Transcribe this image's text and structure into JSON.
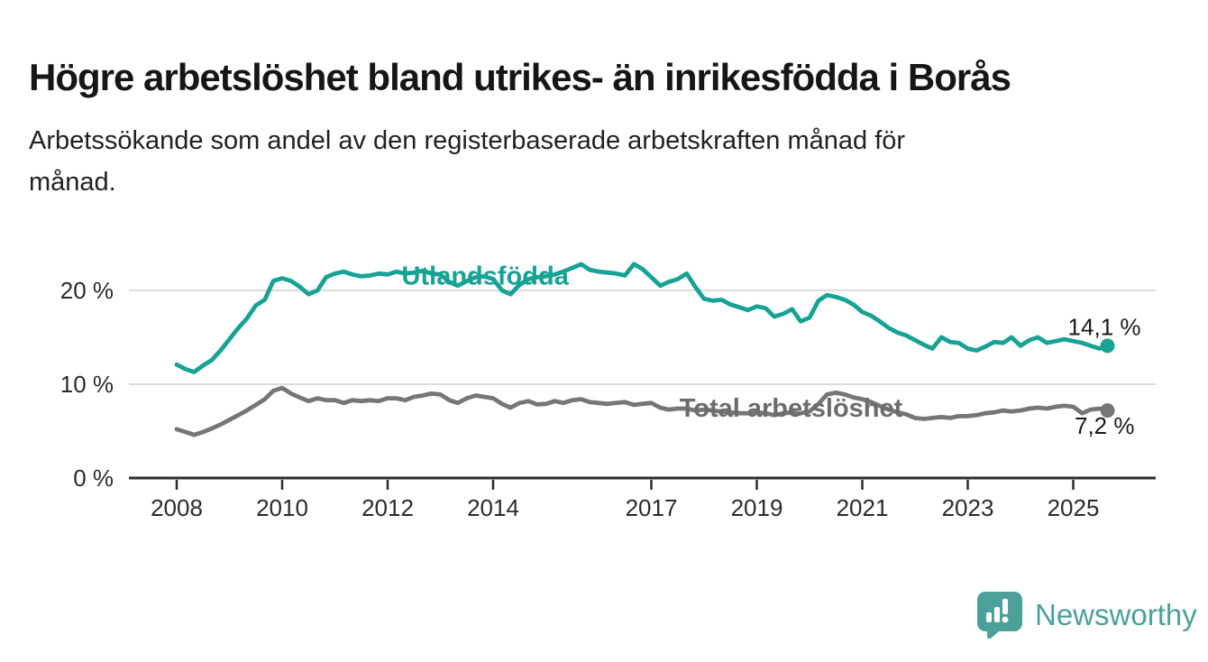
{
  "title": "Högre arbetslöshet bland utrikes- än inrikesfödda i Borås",
  "subtitle_lines": [
    "Arbetssökande som andel av den registerbaserade arbetskraften månad för",
    "månad."
  ],
  "branding": {
    "logo_text": "Newsworthy",
    "logo_color": "#4BA19A"
  },
  "chart_data": {
    "type": "line",
    "unit": "%",
    "grid": "horizontal-only",
    "x_axis": {
      "ticks": [
        2008,
        2010,
        2012,
        2014,
        2017,
        2019,
        2021,
        2023,
        2025
      ],
      "range": [
        2007.1,
        2026.6
      ]
    },
    "y_axis": {
      "ticks": [
        {
          "value": 0,
          "label": "0 %"
        },
        {
          "value": 10,
          "label": "10 %"
        },
        {
          "value": 20,
          "label": "20 %"
        }
      ],
      "gridlines": [
        10,
        20
      ],
      "range": [
        0,
        26
      ]
    },
    "series": [
      {
        "id": "utlandsfodda",
        "name": "Utlandsfödda",
        "color": "#17A294",
        "label_color": "#17A294",
        "end_label": "14,1 %",
        "end_value": 14.1,
        "label_at": {
          "year": 2013.85,
          "value": 21.6
        },
        "points": [
          [
            2008.0,
            12.1
          ],
          [
            2008.17,
            11.6
          ],
          [
            2008.33,
            11.3
          ],
          [
            2008.5,
            12.0
          ],
          [
            2008.67,
            12.6
          ],
          [
            2008.83,
            13.6
          ],
          [
            2009.0,
            14.8
          ],
          [
            2009.17,
            16.0
          ],
          [
            2009.33,
            17.0
          ],
          [
            2009.5,
            18.4
          ],
          [
            2009.67,
            19.0
          ],
          [
            2009.83,
            21.0
          ],
          [
            2010.0,
            21.3
          ],
          [
            2010.17,
            21.0
          ],
          [
            2010.33,
            20.4
          ],
          [
            2010.5,
            19.6
          ],
          [
            2010.67,
            20.0
          ],
          [
            2010.83,
            21.4
          ],
          [
            2011.0,
            21.8
          ],
          [
            2011.17,
            22.0
          ],
          [
            2011.33,
            21.7
          ],
          [
            2011.5,
            21.5
          ],
          [
            2011.67,
            21.6
          ],
          [
            2011.83,
            21.8
          ],
          [
            2012.0,
            21.7
          ],
          [
            2012.17,
            22.0
          ],
          [
            2012.33,
            21.8
          ],
          [
            2012.5,
            21.9
          ],
          [
            2012.67,
            22.1
          ],
          [
            2012.83,
            21.8
          ],
          [
            2013.0,
            21.7
          ],
          [
            2013.17,
            20.9
          ],
          [
            2013.33,
            20.5
          ],
          [
            2013.5,
            21.0
          ],
          [
            2013.67,
            21.4
          ],
          [
            2013.83,
            21.5
          ],
          [
            2014.0,
            21.2
          ],
          [
            2014.17,
            20.0
          ],
          [
            2014.33,
            19.6
          ],
          [
            2014.5,
            20.6
          ],
          [
            2014.67,
            21.2
          ],
          [
            2014.83,
            21.4
          ],
          [
            2015.0,
            21.5
          ],
          [
            2015.17,
            21.7
          ],
          [
            2015.33,
            22.0
          ],
          [
            2015.5,
            22.4
          ],
          [
            2015.67,
            22.8
          ],
          [
            2015.83,
            22.2
          ],
          [
            2016.0,
            22.0
          ],
          [
            2016.17,
            21.9
          ],
          [
            2016.33,
            21.8
          ],
          [
            2016.5,
            21.6
          ],
          [
            2016.67,
            22.8
          ],
          [
            2016.83,
            22.3
          ],
          [
            2017.0,
            21.4
          ],
          [
            2017.17,
            20.5
          ],
          [
            2017.33,
            20.9
          ],
          [
            2017.5,
            21.2
          ],
          [
            2017.67,
            21.8
          ],
          [
            2017.83,
            20.4
          ],
          [
            2018.0,
            19.1
          ],
          [
            2018.17,
            18.9
          ],
          [
            2018.33,
            19.0
          ],
          [
            2018.5,
            18.5
          ],
          [
            2018.67,
            18.2
          ],
          [
            2018.83,
            17.9
          ],
          [
            2019.0,
            18.3
          ],
          [
            2019.17,
            18.1
          ],
          [
            2019.33,
            17.2
          ],
          [
            2019.5,
            17.5
          ],
          [
            2019.67,
            18.0
          ],
          [
            2019.83,
            16.7
          ],
          [
            2020.0,
            17.1
          ],
          [
            2020.17,
            18.9
          ],
          [
            2020.33,
            19.5
          ],
          [
            2020.5,
            19.3
          ],
          [
            2020.67,
            19.0
          ],
          [
            2020.83,
            18.5
          ],
          [
            2021.0,
            17.7
          ],
          [
            2021.17,
            17.3
          ],
          [
            2021.33,
            16.7
          ],
          [
            2021.5,
            16.0
          ],
          [
            2021.67,
            15.5
          ],
          [
            2021.83,
            15.2
          ],
          [
            2022.0,
            14.7
          ],
          [
            2022.17,
            14.2
          ],
          [
            2022.33,
            13.8
          ],
          [
            2022.5,
            15.0
          ],
          [
            2022.67,
            14.5
          ],
          [
            2022.83,
            14.4
          ],
          [
            2023.0,
            13.8
          ],
          [
            2023.17,
            13.6
          ],
          [
            2023.33,
            14.0
          ],
          [
            2023.5,
            14.5
          ],
          [
            2023.67,
            14.4
          ],
          [
            2023.83,
            15.0
          ],
          [
            2024.0,
            14.1
          ],
          [
            2024.17,
            14.7
          ],
          [
            2024.33,
            15.0
          ],
          [
            2024.5,
            14.4
          ],
          [
            2024.67,
            14.6
          ],
          [
            2024.83,
            14.8
          ],
          [
            2025.0,
            14.6
          ],
          [
            2025.17,
            14.4
          ],
          [
            2025.33,
            14.1
          ],
          [
            2025.5,
            13.8
          ],
          [
            2025.65,
            14.1
          ]
        ]
      },
      {
        "id": "total",
        "name": "Total arbetslöshet",
        "color": "#767676",
        "label_color": "#6C6C6C",
        "end_label": "7,2 %",
        "end_value": 7.2,
        "label_at": {
          "year": 2019.65,
          "value": 7.5
        },
        "points": [
          [
            2008.0,
            5.2
          ],
          [
            2008.17,
            4.9
          ],
          [
            2008.33,
            4.6
          ],
          [
            2008.5,
            4.9
          ],
          [
            2008.67,
            5.3
          ],
          [
            2008.83,
            5.7
          ],
          [
            2009.0,
            6.2
          ],
          [
            2009.17,
            6.7
          ],
          [
            2009.33,
            7.2
          ],
          [
            2009.5,
            7.8
          ],
          [
            2009.67,
            8.4
          ],
          [
            2009.83,
            9.3
          ],
          [
            2010.0,
            9.6
          ],
          [
            2010.17,
            9.0
          ],
          [
            2010.33,
            8.6
          ],
          [
            2010.5,
            8.2
          ],
          [
            2010.67,
            8.5
          ],
          [
            2010.83,
            8.3
          ],
          [
            2011.0,
            8.3
          ],
          [
            2011.17,
            8.0
          ],
          [
            2011.33,
            8.3
          ],
          [
            2011.5,
            8.2
          ],
          [
            2011.67,
            8.3
          ],
          [
            2011.83,
            8.2
          ],
          [
            2012.0,
            8.5
          ],
          [
            2012.17,
            8.5
          ],
          [
            2012.33,
            8.3
          ],
          [
            2012.5,
            8.65
          ],
          [
            2012.67,
            8.8
          ],
          [
            2012.83,
            9.0
          ],
          [
            2013.0,
            8.9
          ],
          [
            2013.17,
            8.3
          ],
          [
            2013.33,
            8.0
          ],
          [
            2013.5,
            8.5
          ],
          [
            2013.67,
            8.8
          ],
          [
            2013.83,
            8.65
          ],
          [
            2014.0,
            8.5
          ],
          [
            2014.17,
            7.9
          ],
          [
            2014.33,
            7.5
          ],
          [
            2014.5,
            8.0
          ],
          [
            2014.67,
            8.2
          ],
          [
            2014.83,
            7.85
          ],
          [
            2015.0,
            7.9
          ],
          [
            2015.17,
            8.2
          ],
          [
            2015.33,
            8.0
          ],
          [
            2015.5,
            8.3
          ],
          [
            2015.67,
            8.4
          ],
          [
            2015.83,
            8.1
          ],
          [
            2016.0,
            8.0
          ],
          [
            2016.17,
            7.9
          ],
          [
            2016.33,
            8.0
          ],
          [
            2016.5,
            8.1
          ],
          [
            2016.67,
            7.8
          ],
          [
            2016.83,
            7.9
          ],
          [
            2017.0,
            8.0
          ],
          [
            2017.17,
            7.5
          ],
          [
            2017.33,
            7.3
          ],
          [
            2017.5,
            7.4
          ],
          [
            2017.67,
            7.4
          ],
          [
            2017.83,
            7.2
          ],
          [
            2018.0,
            7.3
          ],
          [
            2018.17,
            7.2
          ],
          [
            2018.33,
            7.1
          ],
          [
            2018.5,
            7.0
          ],
          [
            2018.67,
            6.9
          ],
          [
            2018.83,
            6.9
          ],
          [
            2019.0,
            7.0
          ],
          [
            2019.17,
            6.9
          ],
          [
            2019.33,
            6.7
          ],
          [
            2019.5,
            6.9
          ],
          [
            2019.67,
            7.0
          ],
          [
            2019.83,
            6.9
          ],
          [
            2020.0,
            7.1
          ],
          [
            2020.17,
            7.9
          ],
          [
            2020.33,
            8.9
          ],
          [
            2020.5,
            9.1
          ],
          [
            2020.67,
            8.9
          ],
          [
            2020.83,
            8.6
          ],
          [
            2021.0,
            8.4
          ],
          [
            2021.17,
            8.1
          ],
          [
            2021.33,
            7.7
          ],
          [
            2021.5,
            7.3
          ],
          [
            2021.67,
            7.0
          ],
          [
            2021.83,
            6.8
          ],
          [
            2022.0,
            6.4
          ],
          [
            2022.17,
            6.3
          ],
          [
            2022.33,
            6.4
          ],
          [
            2022.5,
            6.5
          ],
          [
            2022.67,
            6.4
          ],
          [
            2022.83,
            6.6
          ],
          [
            2023.0,
            6.6
          ],
          [
            2023.17,
            6.7
          ],
          [
            2023.33,
            6.9
          ],
          [
            2023.5,
            7.0
          ],
          [
            2023.67,
            7.2
          ],
          [
            2023.83,
            7.1
          ],
          [
            2024.0,
            7.2
          ],
          [
            2024.17,
            7.4
          ],
          [
            2024.33,
            7.5
          ],
          [
            2024.5,
            7.4
          ],
          [
            2024.67,
            7.6
          ],
          [
            2024.83,
            7.7
          ],
          [
            2025.0,
            7.6
          ],
          [
            2025.17,
            6.9
          ],
          [
            2025.33,
            7.3
          ],
          [
            2025.5,
            7.4
          ],
          [
            2025.65,
            7.2
          ]
        ]
      }
    ]
  }
}
